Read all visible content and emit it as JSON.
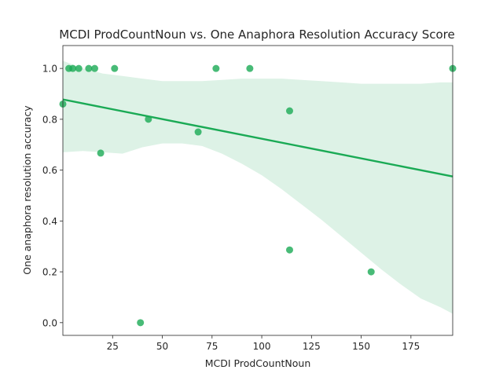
{
  "chart_data": {
    "type": "scatter",
    "title": "MCDI ProdCountNoun vs. One Anaphora Resolution Accuracy Score",
    "xlabel": "MCDI ProdCountNoun",
    "ylabel": "One anaphora resolution accuracy",
    "xlim": [
      0,
      196
    ],
    "ylim": [
      -0.05,
      1.09
    ],
    "xticks": [
      25,
      50,
      75,
      100,
      125,
      150,
      175
    ],
    "yticks": [
      0.0,
      0.2,
      0.4,
      0.6,
      0.8,
      1.0
    ],
    "xtick_labels": [
      "25",
      "50",
      "75",
      "100",
      "125",
      "150",
      "175"
    ],
    "ytick_labels": [
      "0.0",
      "0.2",
      "0.4",
      "0.6",
      "0.8",
      "1.0"
    ],
    "grid": false,
    "colors": {
      "points": "#1aaa55",
      "line": "#1aaa55",
      "band": "#1aaa55"
    },
    "points": [
      {
        "x": 0,
        "y": 0.86
      },
      {
        "x": 3,
        "y": 1.0
      },
      {
        "x": 5,
        "y": 1.0
      },
      {
        "x": 8,
        "y": 1.0
      },
      {
        "x": 13,
        "y": 1.0
      },
      {
        "x": 16,
        "y": 1.0
      },
      {
        "x": 19,
        "y": 0.667
      },
      {
        "x": 26,
        "y": 1.0
      },
      {
        "x": 39,
        "y": 0.0
      },
      {
        "x": 43,
        "y": 0.8
      },
      {
        "x": 68,
        "y": 0.75
      },
      {
        "x": 77,
        "y": 1.0
      },
      {
        "x": 94,
        "y": 1.0
      },
      {
        "x": 114,
        "y": 0.833
      },
      {
        "x": 114,
        "y": 0.286
      },
      {
        "x": 155,
        "y": 0.2
      },
      {
        "x": 196,
        "y": 1.0
      }
    ],
    "regression": {
      "x": [
        0,
        196
      ],
      "y": [
        0.878,
        0.575
      ]
    },
    "confidence_band": {
      "x": [
        0,
        10,
        20,
        30,
        40,
        50,
        60,
        70,
        80,
        90,
        100,
        110,
        120,
        130,
        140,
        150,
        160,
        170,
        180,
        190,
        196
      ],
      "upper": [
        1.03,
        1.0,
        0.98,
        0.97,
        0.96,
        0.95,
        0.95,
        0.95,
        0.955,
        0.96,
        0.96,
        0.96,
        0.955,
        0.95,
        0.945,
        0.94,
        0.94,
        0.94,
        0.94,
        0.945,
        0.945
      ],
      "lower": [
        0.67,
        0.675,
        0.67,
        0.665,
        0.69,
        0.705,
        0.705,
        0.695,
        0.665,
        0.625,
        0.58,
        0.525,
        0.465,
        0.405,
        0.34,
        0.275,
        0.21,
        0.15,
        0.095,
        0.06,
        0.035
      ]
    }
  }
}
